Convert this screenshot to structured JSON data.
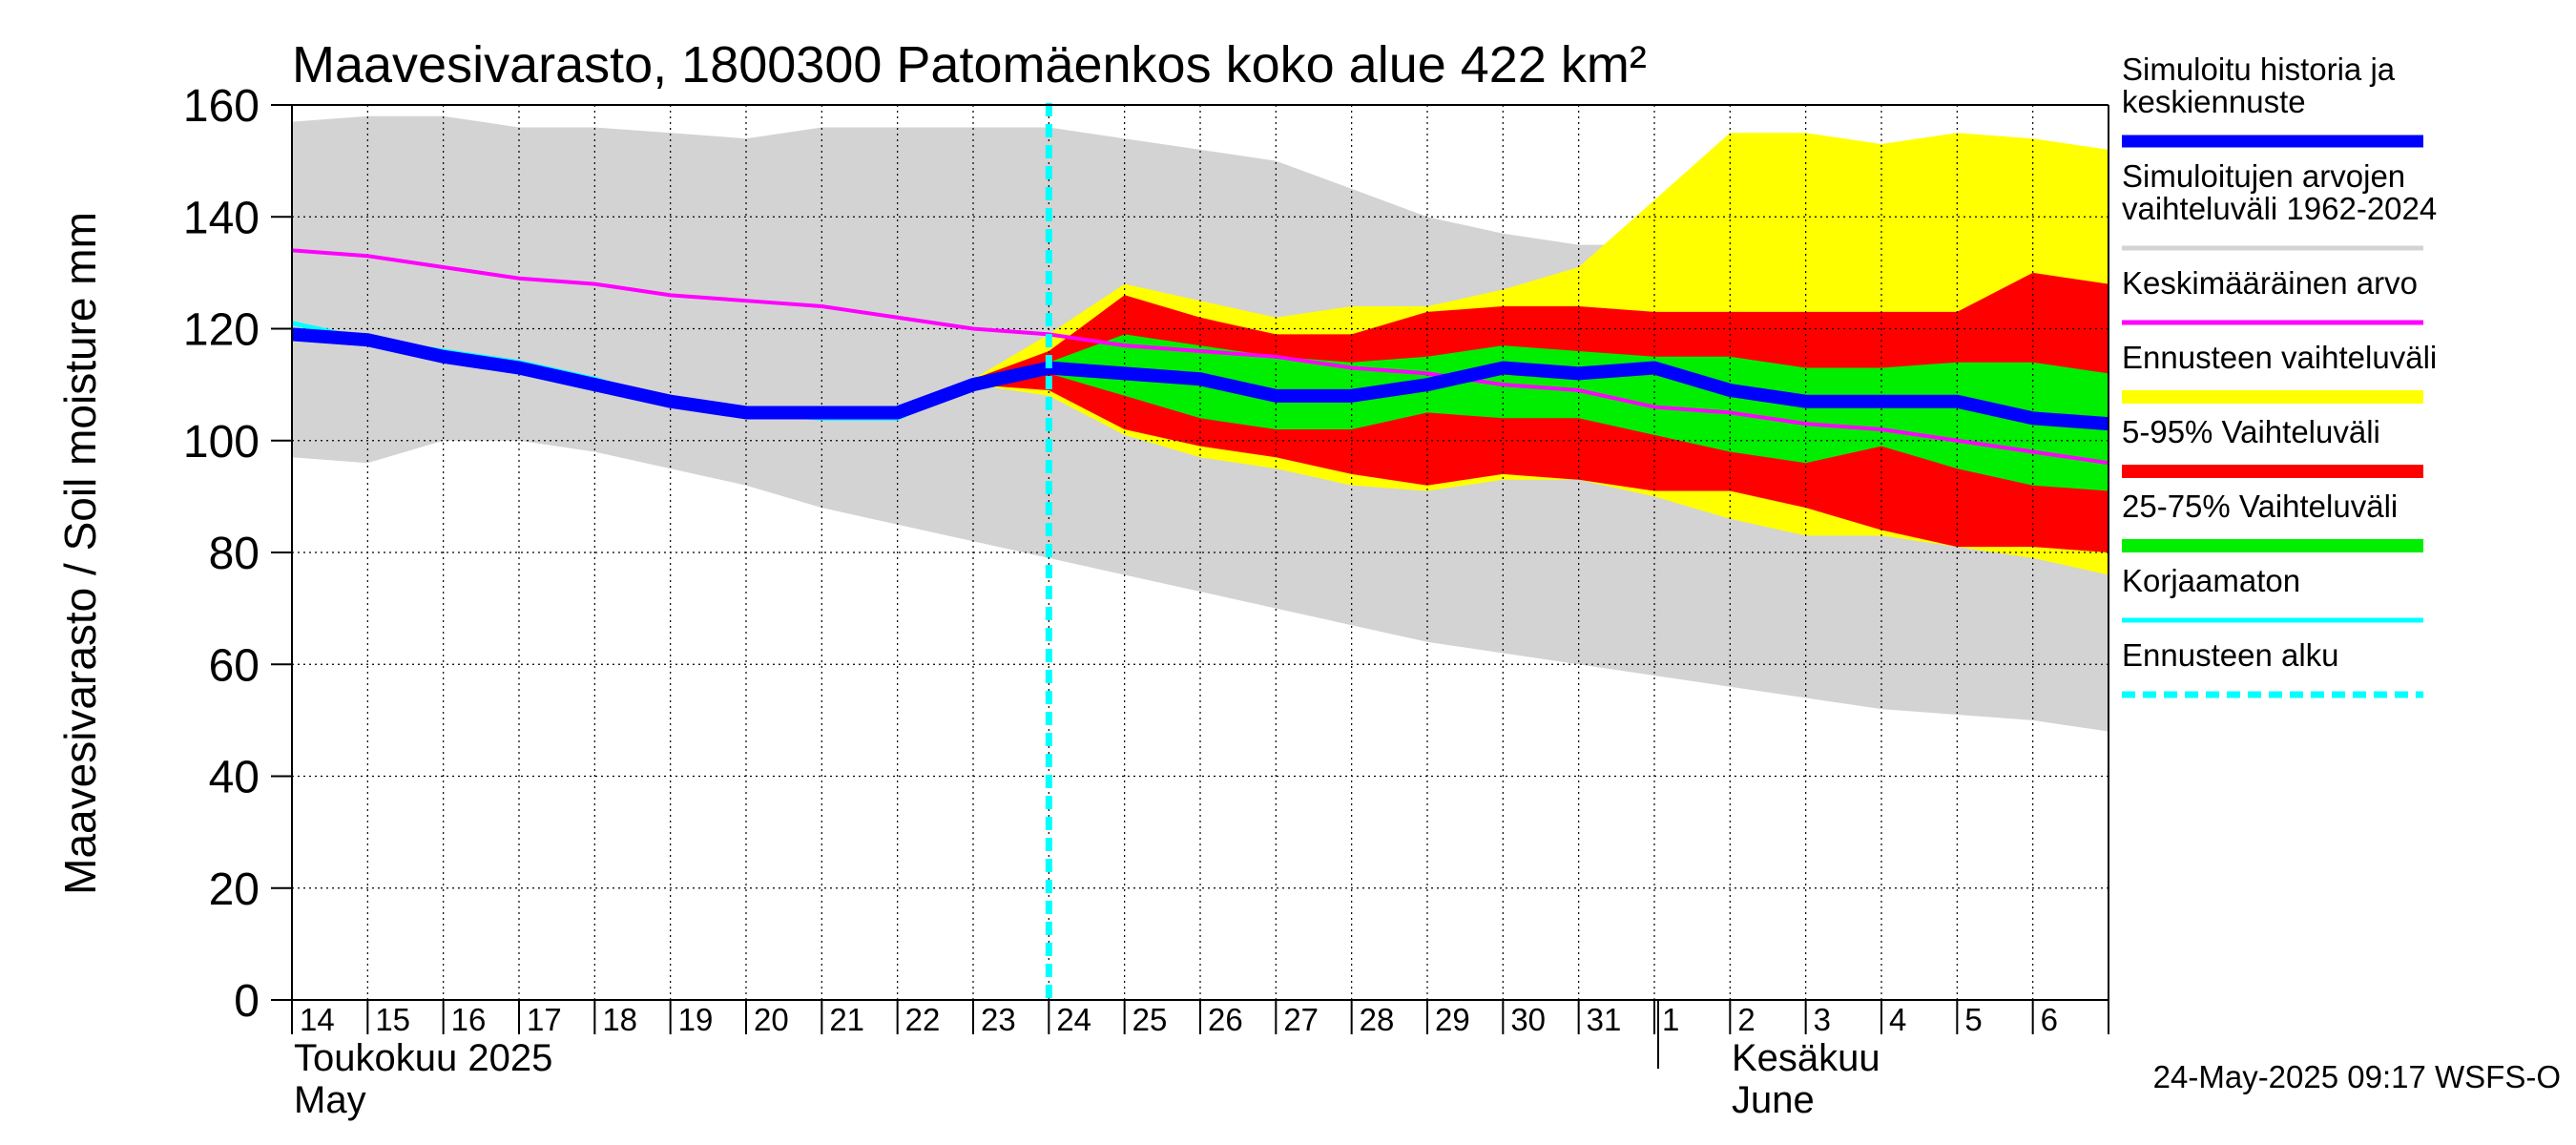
{
  "chart_data": {
    "type": "area",
    "title": "Maavesivarasto, 1800300 Patomäenkos koko alue 422 km²",
    "ylabel": "Maavesivarasto / Soil moisture   mm",
    "ylim": [
      0,
      160
    ],
    "yticks": [
      0,
      20,
      40,
      60,
      80,
      100,
      120,
      140,
      160
    ],
    "ytick_labels": [
      "0",
      "20",
      "40",
      "60",
      "80",
      "100",
      "120",
      "140",
      "160"
    ],
    "grid": true,
    "x_range_days": [
      0,
      24
    ],
    "x_day_labels": [
      "14",
      "15",
      "16",
      "17",
      "18",
      "19",
      "20",
      "21",
      "22",
      "23",
      "24",
      "25",
      "26",
      "27",
      "28",
      "29",
      "30",
      "31",
      "1",
      "2",
      "3",
      "4",
      "5",
      "6"
    ],
    "month_labels": {
      "may_fi": "Toukokuu  2025",
      "may_en": "May",
      "june_fi": "Kesäkuu",
      "june_en": "June"
    },
    "forecast_start_day": 10,
    "x": [
      0,
      1,
      2,
      3,
      4,
      5,
      6,
      7,
      8,
      9,
      10,
      11,
      12,
      13,
      14,
      15,
      16,
      17,
      18,
      19,
      20,
      21,
      22,
      23,
      24
    ],
    "historical_range": {
      "upper": [
        157,
        158,
        158,
        156,
        156,
        155,
        154,
        156,
        156,
        156,
        156,
        154,
        152,
        150,
        145,
        140,
        137,
        135,
        135,
        135,
        136,
        137,
        137,
        137,
        137
      ],
      "lower": [
        97,
        96,
        100,
        100,
        98,
        95,
        92,
        88,
        85,
        82,
        79,
        76,
        73,
        70,
        67,
        64,
        62,
        60,
        58,
        56,
        54,
        52,
        51,
        50,
        48
      ]
    },
    "forecast_range": {
      "upper": [
        null,
        null,
        null,
        null,
        null,
        null,
        null,
        null,
        null,
        111,
        119,
        128,
        125,
        122,
        124,
        124,
        127,
        131,
        143,
        155,
        155,
        153,
        155,
        154,
        152
      ],
      "lower": [
        null,
        null,
        null,
        null,
        null,
        null,
        null,
        null,
        null,
        110,
        108,
        101,
        97,
        95,
        92,
        91,
        93,
        93,
        90,
        86,
        83,
        83,
        81,
        79,
        76
      ]
    },
    "band_5_95": {
      "upper": [
        null,
        null,
        null,
        null,
        null,
        null,
        null,
        null,
        null,
        111,
        116,
        126,
        122,
        119,
        119,
        123,
        124,
        124,
        123,
        123,
        123,
        123,
        123,
        130,
        128
      ],
      "lower": [
        null,
        null,
        null,
        null,
        null,
        null,
        null,
        null,
        null,
        110,
        109,
        102,
        99,
        97,
        94,
        92,
        94,
        93,
        91,
        91,
        88,
        84,
        81,
        81,
        80
      ]
    },
    "band_25_75": {
      "upper": [
        null,
        null,
        null,
        null,
        null,
        null,
        null,
        null,
        null,
        110,
        114,
        119,
        117,
        115,
        114,
        115,
        117,
        116,
        115,
        115,
        113,
        113,
        114,
        114,
        112
      ],
      "lower": [
        null,
        null,
        null,
        null,
        null,
        null,
        null,
        null,
        null,
        110,
        112,
        108,
        104,
        102,
        102,
        105,
        104,
        104,
        101,
        98,
        96,
        99,
        95,
        92,
        91
      ]
    },
    "series": [
      {
        "name": "Simuloitu historia ja keskiennuste",
        "values": [
          119,
          118,
          115,
          113,
          110,
          107,
          105,
          105,
          105,
          110,
          113,
          112,
          111,
          108,
          108,
          110,
          113,
          112,
          113,
          109,
          107,
          107,
          107,
          104,
          103
        ]
      },
      {
        "name": "Keskimääräinen arvo",
        "values": [
          134,
          133,
          131,
          129,
          128,
          126,
          125,
          124,
          122,
          120,
          119,
          117,
          116,
          115,
          113,
          112,
          110,
          109,
          106,
          105,
          103,
          102,
          100,
          98,
          96
        ]
      },
      {
        "name": "Korjaamaton",
        "values": [
          121,
          118,
          116,
          114,
          111,
          107,
          105,
          104,
          104,
          110,
          null,
          null,
          null,
          null,
          null,
          null,
          null,
          null,
          null,
          null,
          null,
          null,
          null,
          null,
          null
        ]
      }
    ],
    "legend": [
      {
        "label_lines": [
          "Simuloitu historia ja",
          "keskiennuste"
        ],
        "color": "#0000ff",
        "style": "thick"
      },
      {
        "label_lines": [
          "Simuloitujen arvojen",
          "vaihteluväli 1962-2024"
        ],
        "color": "#d3d3d3",
        "style": "line"
      },
      {
        "label_lines": [
          "Keskimääräinen arvo"
        ],
        "color": "#ff00ff",
        "style": "line"
      },
      {
        "label_lines": [
          "Ennusteen vaihteluväli"
        ],
        "color": "#ffff00",
        "style": "band"
      },
      {
        "label_lines": [
          "5-95% Vaihteluväli"
        ],
        "color": "#ff0000",
        "style": "band"
      },
      {
        "label_lines": [
          "25-75% Vaihteluväli"
        ],
        "color": "#00ee00",
        "style": "band"
      },
      {
        "label_lines": [
          "Korjaamaton"
        ],
        "color": "#00ffff",
        "style": "line"
      },
      {
        "label_lines": [
          "Ennusteen alku"
        ],
        "color": "#00ffff",
        "style": "dashed"
      }
    ],
    "legend_position": "right",
    "timestamp": "24-May-2025 09:17 WSFS-O",
    "colors": {
      "historical_range": "#d3d3d3",
      "forecast_range": "#ffff00",
      "band_5_95": "#ff0000",
      "band_25_75": "#00ee00",
      "main": "#0000ff",
      "mean": "#ff00ff",
      "uncorrected": "#00ffff",
      "forecast_start": "#00ffff"
    }
  }
}
